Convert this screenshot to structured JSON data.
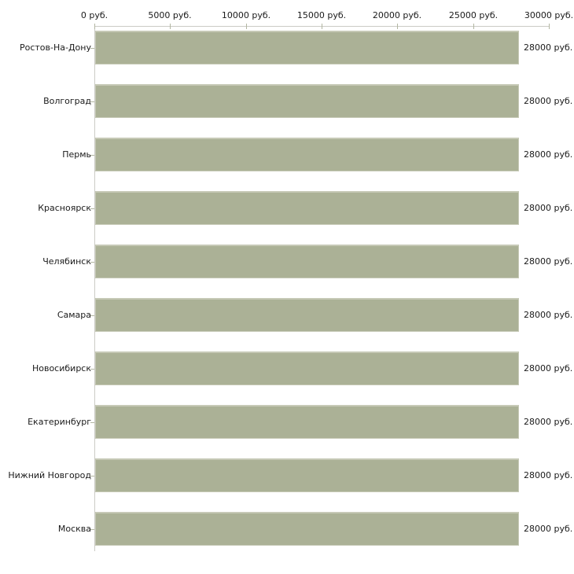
{
  "chart_data": {
    "type": "bar",
    "orientation": "horizontal",
    "title": "",
    "xlabel": "",
    "ylabel": "",
    "grid": false,
    "legend": false,
    "categories": [
      "Ростов-На-Дону",
      "Волгоград",
      "Пермь",
      "Красноярск",
      "Челябинск",
      "Самара",
      "Новосибирск",
      "Екатеринбург",
      "Нижний Новгород",
      "Москва"
    ],
    "values": [
      28000,
      28000,
      28000,
      28000,
      28000,
      28000,
      28000,
      28000,
      28000,
      28000
    ],
    "value_labels": [
      "28000 руб.",
      "28000 руб.",
      "28000 руб.",
      "28000 руб.",
      "28000 руб.",
      "28000 руб.",
      "28000 руб.",
      "28000 руб.",
      "28000 руб.",
      "28000 руб."
    ],
    "x_axis": {
      "position": "top",
      "min": 0,
      "max": 30000,
      "ticks": [
        0,
        5000,
        10000,
        15000,
        20000,
        25000,
        30000
      ],
      "tick_labels": [
        "0 руб.",
        "5000 руб.",
        "10000 руб.",
        "15000 руб.",
        "20000 руб.",
        "25000 руб.",
        "30000 руб."
      ]
    },
    "colors": {
      "bar_fill": "#abb196",
      "bar_border": "#c6c9b6",
      "axis_line": "#cbcbc5",
      "tick_mark": "#b2b6a2",
      "text": "#1a1a1a",
      "background": "#ffffff"
    }
  }
}
